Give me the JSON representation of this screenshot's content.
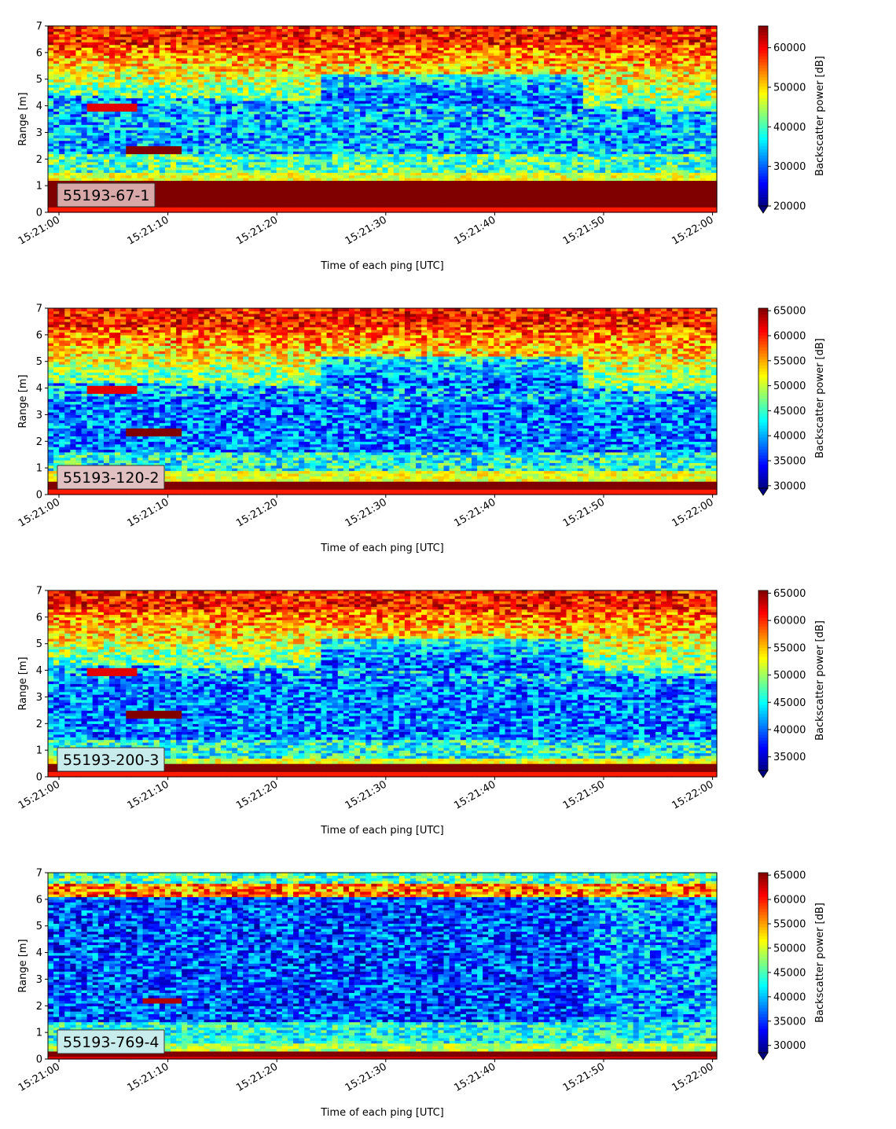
{
  "chart_data": [
    {
      "type": "heatmap",
      "label": "55193-67-1",
      "xlabel": "Time of each ping [UTC]",
      "ylabel": "Range [m]",
      "x_ticks": [
        "15:21:00",
        "15:21:10",
        "15:21:20",
        "15:21:30",
        "15:21:40",
        "15:21:50",
        "15:22:00"
      ],
      "ylim": [
        0,
        7
      ],
      "y_ticks": [
        0,
        1,
        2,
        3,
        4,
        5,
        6,
        7
      ],
      "colorbar": {
        "label": "Backscatter power [dB]",
        "min": 20000,
        "max": 65500,
        "ticks": [
          20000,
          30000,
          40000,
          50000,
          60000
        ],
        "extend": "min",
        "colormap": "jet"
      },
      "label_box_color": "#d8a8a8"
    },
    {
      "type": "heatmap",
      "label": "55193-120-2",
      "xlabel": "Time of each ping [UTC]",
      "ylabel": "Range [m]",
      "x_ticks": [
        "15:21:00",
        "15:21:10",
        "15:21:20",
        "15:21:30",
        "15:21:40",
        "15:21:50",
        "15:22:00"
      ],
      "ylim": [
        0,
        7
      ],
      "y_ticks": [
        0,
        1,
        2,
        3,
        4,
        5,
        6,
        7
      ],
      "colorbar": {
        "label": "Backscatter power [dB]",
        "min": 29500,
        "max": 65500,
        "ticks": [
          30000,
          35000,
          40000,
          45000,
          50000,
          55000,
          60000,
          65000
        ],
        "extend": "min",
        "colormap": "jet"
      },
      "label_box_color": "#e0c0c0"
    },
    {
      "type": "heatmap",
      "label": "55193-200-3",
      "xlabel": "Time of each ping [UTC]",
      "ylabel": "Range [m]",
      "x_ticks": [
        "15:21:00",
        "15:21:10",
        "15:21:20",
        "15:21:30",
        "15:21:40",
        "15:21:50",
        "15:22:00"
      ],
      "ylim": [
        0,
        7
      ],
      "y_ticks": [
        0,
        1,
        2,
        3,
        4,
        5,
        6,
        7
      ],
      "colorbar": {
        "label": "Backscatter power [dB]",
        "min": 32500,
        "max": 65500,
        "ticks": [
          35000,
          40000,
          45000,
          50000,
          55000,
          60000,
          65000
        ],
        "extend": "min",
        "colormap": "jet"
      },
      "label_box_color": "#c8ecec"
    },
    {
      "type": "heatmap",
      "label": "55193-769-4",
      "xlabel": "Time of each ping [UTC]",
      "ylabel": "Range [m]",
      "x_ticks": [
        "15:21:00",
        "15:21:10",
        "15:21:20",
        "15:21:30",
        "15:21:40",
        "15:21:50",
        "15:22:00"
      ],
      "ylim": [
        0,
        7
      ],
      "y_ticks": [
        0,
        1,
        2,
        3,
        4,
        5,
        6,
        7
      ],
      "colorbar": {
        "label": "Backscatter power [dB]",
        "min": 28500,
        "max": 65500,
        "ticks": [
          30000,
          35000,
          40000,
          45000,
          50000,
          55000,
          60000,
          65000
        ],
        "extend": "min",
        "colormap": "jet"
      },
      "label_box_color": "#c8ecec"
    }
  ]
}
